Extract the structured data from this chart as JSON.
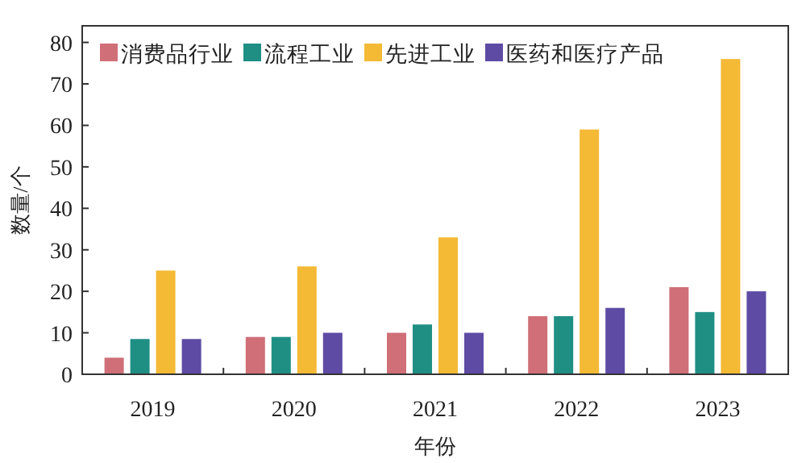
{
  "chart_data": {
    "type": "bar",
    "xlabel": "年份",
    "ylabel": "数量/个",
    "categories": [
      "2019",
      "2020",
      "2021",
      "2022",
      "2023"
    ],
    "series": [
      {
        "name": "消费品行业",
        "color": "#d06f78",
        "values": [
          4,
          9,
          10,
          14,
          21
        ]
      },
      {
        "name": "流程工业",
        "color": "#1f8f84",
        "values": [
          8.5,
          9,
          12,
          14,
          15
        ]
      },
      {
        "name": "先进工业",
        "color": "#f4b935",
        "values": [
          25,
          26,
          33,
          59,
          76
        ]
      },
      {
        "name": "医药和医疗产品",
        "color": "#5e4ba4",
        "values": [
          8.5,
          10,
          10,
          16,
          20
        ]
      }
    ],
    "ylim": [
      0,
      84
    ],
    "yticks": [
      0,
      10,
      20,
      30,
      40,
      50,
      60,
      70,
      80
    ],
    "grid": false,
    "legend": "top left"
  }
}
